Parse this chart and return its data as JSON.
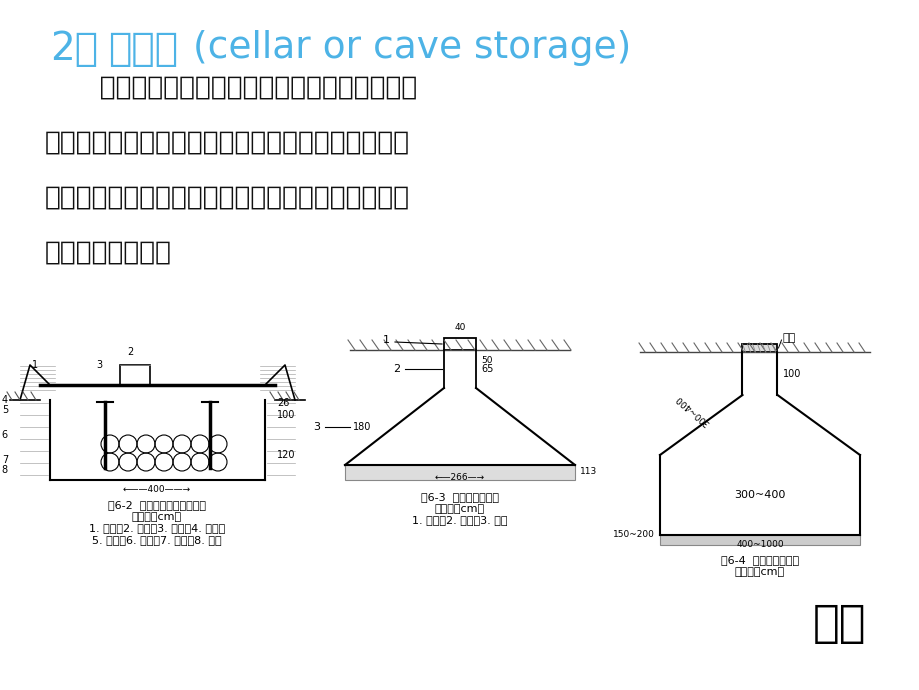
{
  "bg_color": "#ffffff",
  "title_color": "#4db3e6",
  "title_fontsize": 28,
  "body_fontsize": 19,
  "fig1_caption": "图6-2  棚窖（白菜窖）示意图\n（单位：cm）\n1. 横杆；2. 天窗；3. 泥土；4. 枕木；\n5. 棚架；6. 窖眼；7. 支柱；8. 白菜",
  "fig2_caption": "图6-3  南充地窖示意图\n（单位：cm）\n1. 窖口；2. 窖颈；3. 窖体",
  "fig3_caption": "图6-4  山西井窖示意图\n（单位：cm）",
  "return_text": "返回",
  "return_color": "#000000"
}
